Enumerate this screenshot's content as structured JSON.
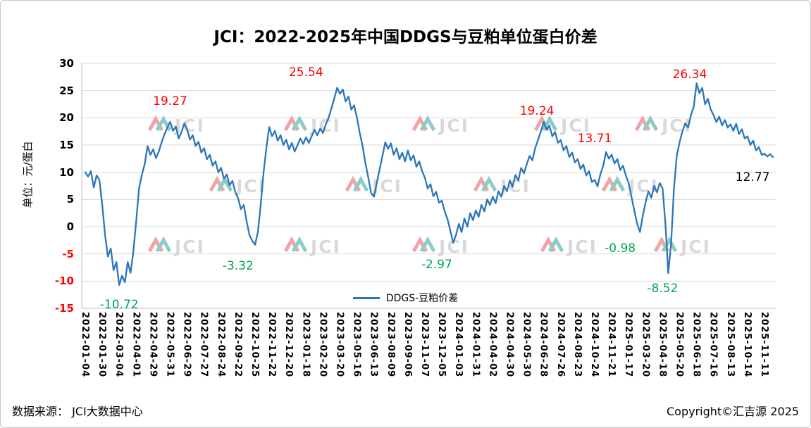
{
  "watermark": {
    "text": "JCI"
  },
  "footer": {
    "source": "数据来源： JCI大数据中心",
    "copyright": "Copyright©汇吉源 2025"
  },
  "colors": {
    "line": "#2B76B9",
    "grid": "#DADADA",
    "axis": "#BFBFBF",
    "negative_tick": "#FF0000",
    "annotation_red": "#FF0000",
    "annotation_green": "#00A651",
    "annotation_black": "#000000",
    "watermark_gray": "#BBBBBB",
    "watermark_red": "#E25C5C",
    "watermark_teal": "#2FA39A"
  },
  "chart_data": {
    "type": "line",
    "title": "JCI：2022-2025年中国DDGS与豆粕单位蛋白价差",
    "xlabel": "",
    "ylabel": "单位：元/蛋白",
    "ylim": [
      -15,
      30
    ],
    "yticks": [
      30,
      25,
      20,
      15,
      10,
      5,
      0,
      -5,
      -10,
      -15
    ],
    "grid": "horizontal",
    "legend_position": "bottom-center-inside",
    "categories": [
      "2022-01-04",
      "2022-01-30",
      "2022-03-04",
      "2022-04-01",
      "2022-04-29",
      "2022-05-31",
      "2022-06-29",
      "2022-07-27",
      "2022-08-24",
      "2022-09-22",
      "2022-10-25",
      "2022-11-22",
      "2022-12-20",
      "2023-01-18",
      "2023-02-20",
      "2023-03-20",
      "2023-05-16",
      "2023-06-13",
      "2023-08-09",
      "2023-09-06",
      "2023-11-07",
      "2023-12-05",
      "2024-01-03",
      "2024-01-31",
      "2024-04-02",
      "2024-04-30",
      "2024-05-30",
      "2024-06-28",
      "2024-07-26",
      "2024-08-23",
      "2024-10-24",
      "2024-11-21",
      "2025-01-17",
      "2025-03-20",
      "2025-04-18",
      "2025-05-20",
      "2025-06-18",
      "2025-07-16",
      "2025-08-13",
      "2025-10-14",
      "2025-11-11"
    ],
    "x_span_labels": 40.5,
    "last_value": 12.77,
    "series": [
      {
        "name": "DDGS-豆粕价差",
        "color": "#2B76B9",
        "values": [
          10.0,
          9.2,
          10.2,
          7.2,
          9.4,
          8.6,
          4.0,
          -1.5,
          -5.5,
          -4.0,
          -8.0,
          -6.5,
          -10.72,
          -9.0,
          -10.2,
          -6.5,
          -8.5,
          -4.5,
          1.0,
          7.0,
          9.5,
          11.5,
          14.8,
          13.2,
          14.2,
          12.6,
          13.8,
          15.5,
          17.0,
          18.2,
          19.27,
          17.6,
          18.4,
          16.2,
          17.4,
          19.0,
          17.8,
          16.0,
          16.8,
          14.8,
          15.6,
          13.6,
          14.4,
          12.4,
          13.2,
          11.2,
          12.0,
          10.0,
          10.8,
          8.8,
          9.6,
          7.6,
          8.4,
          6.4,
          5.2,
          3.2,
          4.0,
          1.0,
          -1.5,
          -2.6,
          -3.32,
          -1.0,
          4.0,
          10.0,
          14.5,
          18.3,
          16.6,
          17.6,
          15.8,
          16.8,
          15.0,
          16.0,
          14.2,
          15.4,
          13.8,
          15.0,
          16.2,
          15.2,
          16.4,
          15.4,
          16.6,
          17.8,
          16.8,
          18.0,
          17.2,
          18.8,
          20.0,
          21.8,
          23.6,
          25.54,
          24.4,
          25.2,
          23.0,
          23.9,
          21.5,
          22.3,
          20.0,
          17.2,
          14.8,
          11.6,
          9.0,
          6.2,
          5.5,
          8.0,
          10.5,
          13.0,
          15.5,
          14.3,
          15.3,
          13.2,
          14.4,
          12.4,
          13.6,
          12.0,
          14.0,
          12.2,
          13.1,
          11.0,
          12.0,
          10.2,
          9.0,
          7.0,
          7.8,
          5.6,
          6.4,
          4.4,
          4.8,
          2.8,
          1.4,
          -0.8,
          -2.97,
          -1.5,
          0.5,
          -1.0,
          1.5,
          0.0,
          2.5,
          1.2,
          3.0,
          1.8,
          4.0,
          2.8,
          5.0,
          4.0,
          5.5,
          4.3,
          6.5,
          5.5,
          7.5,
          6.5,
          8.5,
          7.3,
          9.5,
          8.5,
          10.8,
          9.8,
          11.5,
          13.0,
          12.2,
          14.5,
          16.0,
          17.5,
          19.24,
          17.8,
          18.6,
          16.6,
          17.4,
          15.4,
          15.9,
          14.0,
          14.8,
          12.8,
          13.6,
          11.8,
          12.4,
          10.6,
          11.4,
          9.4,
          10.2,
          8.2,
          8.6,
          7.4,
          9.6,
          11.2,
          13.71,
          12.5,
          13.2,
          11.6,
          12.4,
          10.4,
          11.2,
          9.4,
          8.0,
          5.5,
          3.0,
          0.5,
          -0.98,
          2.0,
          4.5,
          6.5,
          5.3,
          7.5,
          6.3,
          8.0,
          7.0,
          0.5,
          -8.52,
          -3.0,
          7.0,
          13.0,
          15.5,
          17.5,
          19.0,
          18.2,
          20.5,
          22.0,
          26.34,
          24.5,
          25.5,
          22.5,
          23.5,
          21.5,
          20.5,
          19.2,
          20.2,
          18.6,
          19.6,
          18.2,
          18.8,
          17.6,
          18.9,
          17.0,
          17.9,
          16.2,
          16.6,
          15.0,
          15.8,
          14.0,
          14.6,
          13.2,
          13.4,
          12.9,
          13.3,
          12.77
        ]
      }
    ],
    "annotations": [
      {
        "text": "19.27",
        "x": 5.0,
        "y": 23.0,
        "color": "red"
      },
      {
        "text": "25.54",
        "x": 13.0,
        "y": 28.3,
        "color": "red"
      },
      {
        "text": "19.24",
        "x": 26.6,
        "y": 21.2,
        "color": "red"
      },
      {
        "text": "13.71",
        "x": 30.0,
        "y": 16.2,
        "color": "red"
      },
      {
        "text": "26.34",
        "x": 35.6,
        "y": 27.9,
        "color": "red"
      },
      {
        "text": "-10.72",
        "x": 2.0,
        "y": -14.3,
        "color": "green"
      },
      {
        "text": "-3.32",
        "x": 9.0,
        "y": -7.2,
        "color": "green"
      },
      {
        "text": "-2.97",
        "x": 20.7,
        "y": -7.0,
        "color": "green"
      },
      {
        "text": "-0.98",
        "x": 31.5,
        "y": -4.0,
        "color": "green"
      },
      {
        "text": "-8.52",
        "x": 34.0,
        "y": -11.4,
        "color": "green"
      },
      {
        "text": "12.77",
        "x": 39.3,
        "y": 9.1,
        "color": "black"
      }
    ]
  }
}
